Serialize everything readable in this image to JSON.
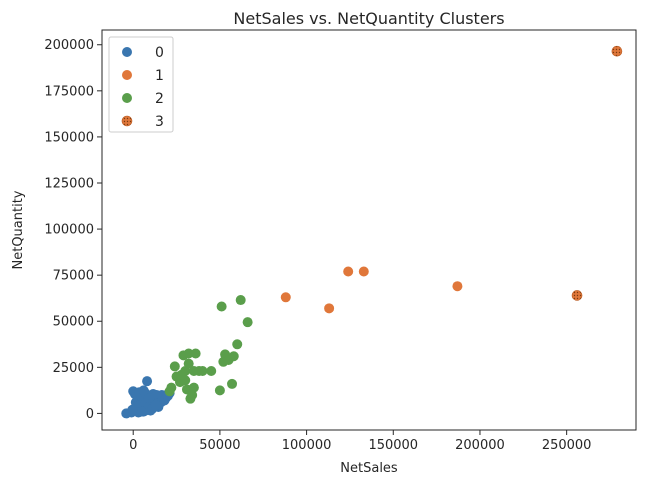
{
  "chart_data": {
    "type": "scatter",
    "title": "NetSales vs. NetQuantity Clusters",
    "xlabel": "NetSales",
    "ylabel": "NetQuantity",
    "xlim": [
      -18000,
      290000
    ],
    "ylim": [
      -9000,
      208000
    ],
    "xticks": [
      0,
      50000,
      100000,
      150000,
      200000,
      250000
    ],
    "xtick_labels": [
      "0",
      "50000",
      "100000",
      "150000",
      "200000",
      "250000"
    ],
    "yticks": [
      0,
      25000,
      50000,
      75000,
      100000,
      125000,
      150000,
      175000,
      200000
    ],
    "ytick_labels": [
      "0",
      "25000",
      "50000",
      "75000",
      "100000",
      "125000",
      "150000",
      "175000",
      "200000"
    ],
    "grid": false,
    "legend_position": "top-left",
    "series": [
      {
        "name": "0",
        "color": "#3a76af",
        "x": [
          -4000,
          -1000,
          0,
          1000,
          2000,
          2500,
          3000,
          3500,
          4000,
          4500,
          5000,
          5500,
          6000,
          6500,
          7000,
          7500,
          8000,
          8500,
          9000,
          9500,
          10000,
          10500,
          11000,
          11500,
          12000,
          12500,
          13000,
          13500,
          14000,
          14500,
          15000,
          16000,
          17000,
          18000,
          19000,
          20000,
          21000,
          1500,
          2500,
          3500,
          4500,
          5500,
          6500,
          7500,
          8500,
          9500,
          10500,
          11500,
          12500,
          13500,
          14500,
          15500,
          16500,
          1000,
          2000,
          3000,
          5000,
          7000,
          9000,
          11000,
          13000,
          15000,
          17000,
          19000,
          0,
          6000,
          8000,
          10000,
          12000,
          14000,
          16000,
          18000,
          20000,
          4000,
          7000,
          9000,
          11000,
          13000,
          3000,
          5000,
          -500,
          8000,
          6000
        ],
        "y": [
          0,
          500,
          12000,
          10500,
          1500,
          2500,
          4000,
          1000,
          8000,
          3000,
          2000,
          5000,
          6500,
          3500,
          1500,
          7000,
          4500,
          2500,
          9500,
          5500,
          3000,
          7500,
          4000,
          6000,
          8500,
          5000,
          7000,
          10000,
          6500,
          3500,
          8000,
          9000,
          9500,
          7500,
          8500,
          10500,
          11000,
          6000,
          9000,
          11500,
          5500,
          7500,
          10000,
          4500,
          9500,
          6500,
          8000,
          10500,
          7000,
          9000,
          4500,
          6000,
          10000,
          2500,
          4000,
          3000,
          9000,
          11000,
          8000,
          6500,
          9500,
          7500,
          8500,
          9000,
          1500,
          1000,
          2000,
          1500,
          3500,
          5500,
          6000,
          7000,
          9500,
          4500,
          5500,
          3500,
          2500,
          4500,
          500,
          1000,
          2000,
          17500,
          12500
        ]
      },
      {
        "name": "1",
        "color": "#e0773a",
        "x": [
          88000,
          113000,
          124000,
          133000,
          187000
        ],
        "y": [
          63000,
          57000,
          77000,
          77000,
          69000
        ]
      },
      {
        "name": "2",
        "color": "#5a9e4b",
        "x": [
          21000,
          22000,
          25000,
          27000,
          29000,
          30000,
          31000,
          32000,
          33000,
          34000,
          35000,
          36000,
          38000,
          40000,
          45000,
          50000,
          52000,
          53000,
          55000,
          57000,
          58000,
          60000,
          62000,
          66000,
          51000,
          30000,
          28000,
          24000,
          35000,
          32000
        ],
        "y": [
          12000,
          14000,
          20000,
          17000,
          31500,
          23000,
          13000,
          32500,
          8000,
          10000,
          23000,
          32500,
          23000,
          23000,
          23000,
          12500,
          28000,
          32000,
          29000,
          16000,
          31000,
          37500,
          61500,
          49500,
          58000,
          18000,
          21000,
          25500,
          14000,
          27000
        ]
      },
      {
        "name": "3",
        "color": "#e0773a",
        "hatched": true,
        "x": [
          256000,
          279000
        ],
        "y": [
          64000,
          196500
        ]
      }
    ]
  }
}
